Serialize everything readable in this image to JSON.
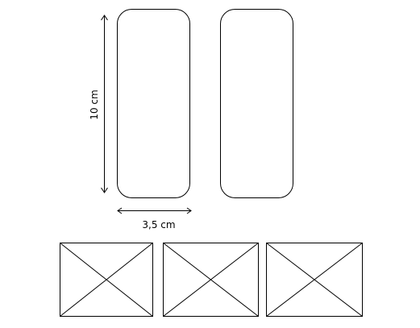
{
  "dimensions": {
    "height_label": "10 cm",
    "width_label": "3,5 cm"
  },
  "colors": {
    "background": "#ffffff",
    "stroke": "#000000"
  },
  "shapes": {
    "rounded_rectangles": 2,
    "placeholder_boxes": 3
  }
}
